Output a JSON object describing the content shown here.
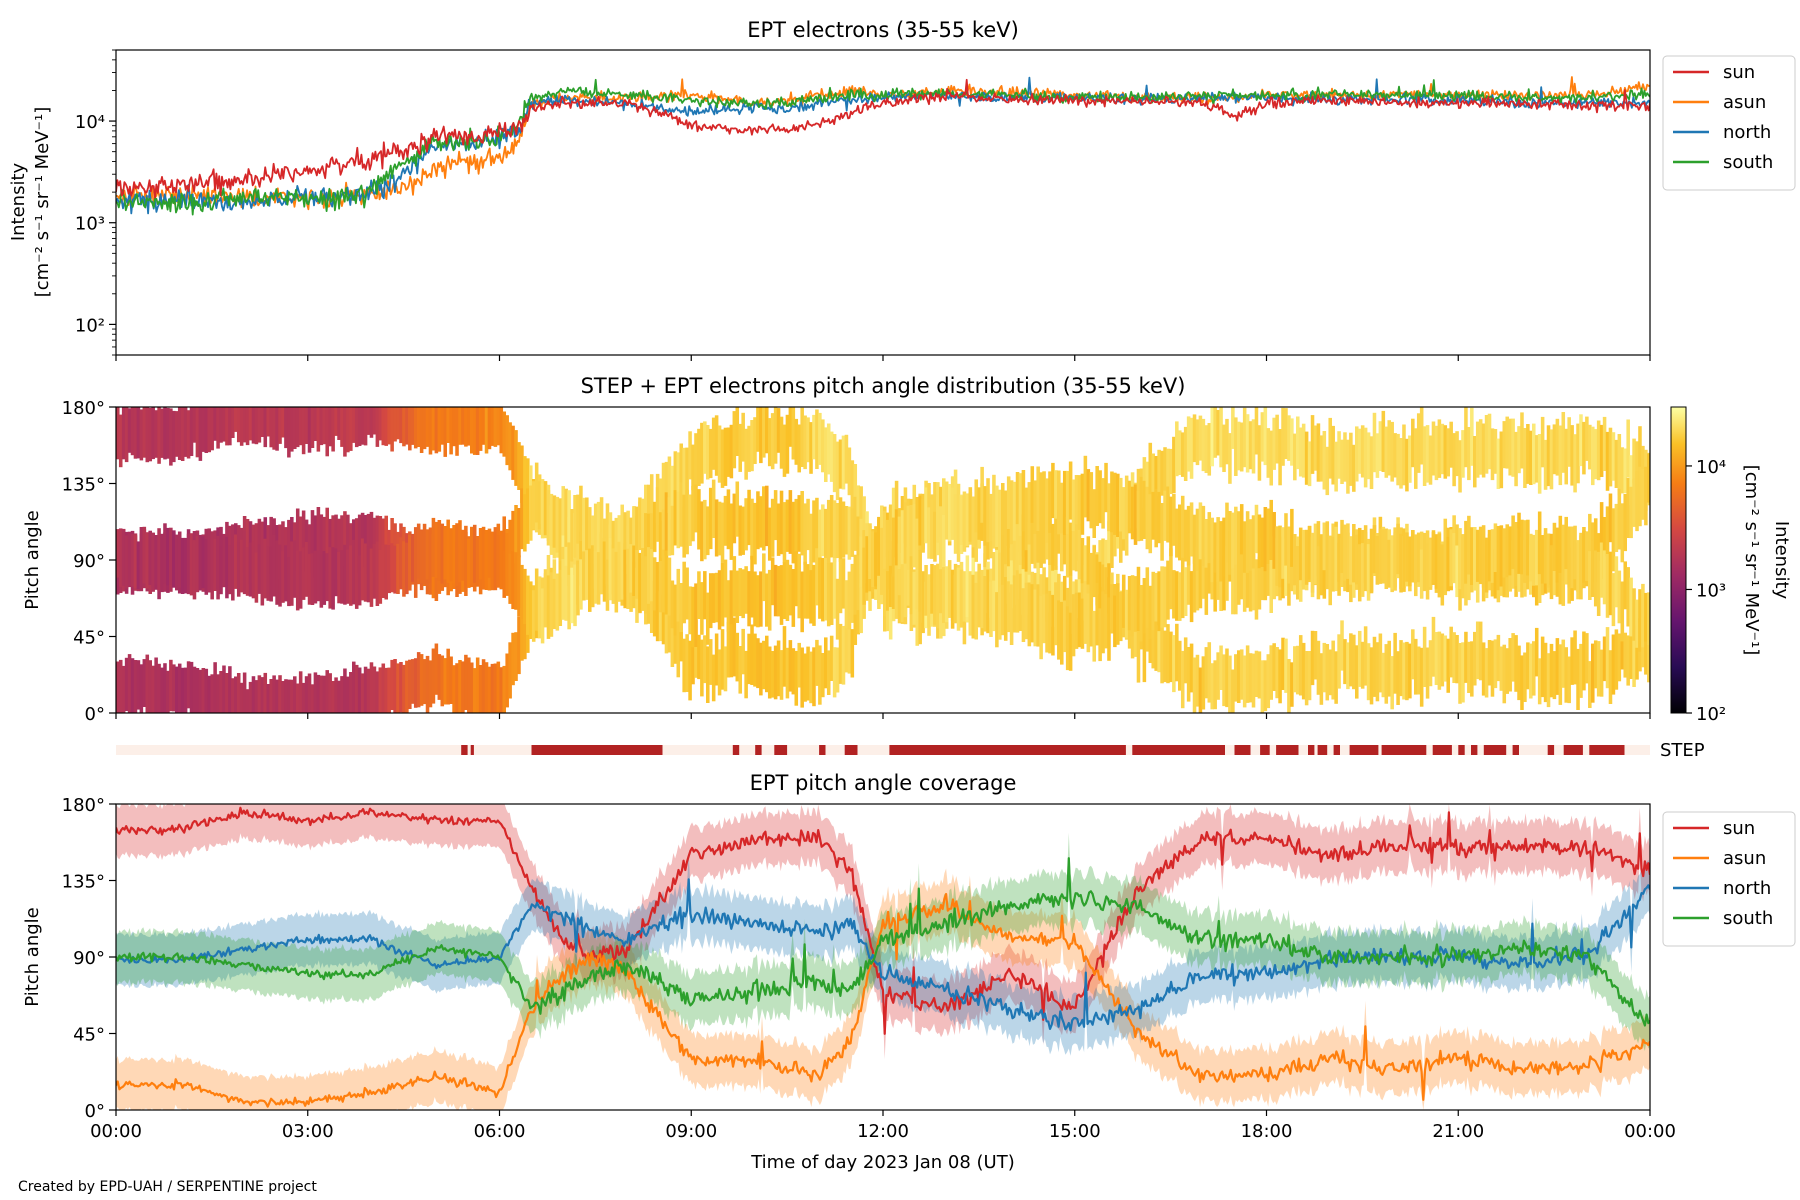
{
  "figure": {
    "credit": "Created by EPD-UAH / SERPENTINE project",
    "xlabel": "Time of day 2023 Jan 08 (UT)",
    "x_ticks": [
      "00:00",
      "03:00",
      "06:00",
      "09:00",
      "12:00",
      "15:00",
      "18:00",
      "21:00",
      "00:00"
    ]
  },
  "chart_data": [
    {
      "panel": "intensity",
      "type": "line",
      "title": "EPT electrons (35-55 keV)",
      "ylabel_line1": "Intensity",
      "ylabel_line2": "[cm⁻² s⁻¹ sr⁻¹ MeV⁻¹]",
      "yscale": "log",
      "ylim": [
        50,
        50000
      ],
      "y_ticks": [
        "10²",
        "10³",
        "10⁴"
      ],
      "x_range_hours": [
        0,
        24
      ],
      "legend_position": "outside-right",
      "x_hours": [
        0,
        1,
        2,
        3,
        4,
        4.5,
        5,
        6,
        6.3,
        6.5,
        7,
        8,
        9,
        10,
        10.5,
        11,
        11.5,
        12,
        13,
        14,
        15,
        16,
        17,
        17.5,
        18,
        19,
        20,
        21,
        22,
        23,
        24
      ],
      "series": [
        {
          "name": "sun",
          "color": "#d62728",
          "values": [
            2200,
            2400,
            2600,
            3200,
            4200,
            5500,
            6800,
            7500,
            9000,
            13000,
            15000,
            15000,
            9000,
            8000,
            8500,
            9500,
            12000,
            15000,
            18000,
            16000,
            16000,
            16000,
            15000,
            11000,
            15000,
            16000,
            15000,
            15000,
            15000,
            14000,
            14000
          ]
        },
        {
          "name": "asun",
          "color": "#ff7f0e",
          "values": [
            1800,
            1900,
            1800,
            1700,
            1900,
            2200,
            3500,
            4500,
            6000,
            15000,
            17000,
            17000,
            18000,
            15000,
            16000,
            18000,
            20000,
            18000,
            20000,
            19000,
            18000,
            17000,
            17000,
            17000,
            18000,
            18000,
            18000,
            18000,
            18000,
            18000,
            22000
          ]
        },
        {
          "name": "north",
          "color": "#1f77b4",
          "values": [
            1600,
            1700,
            1600,
            1800,
            2000,
            3000,
            5500,
            7000,
            8000,
            15000,
            16000,
            15000,
            12000,
            14000,
            13000,
            15000,
            16000,
            17000,
            18000,
            17000,
            17000,
            16000,
            17000,
            17000,
            17000,
            16000,
            16000,
            16000,
            15000,
            15000,
            15000
          ]
        },
        {
          "name": "south",
          "color": "#2ca02c",
          "values": [
            1700,
            1500,
            1800,
            1700,
            1900,
            4000,
            6000,
            7000,
            9000,
            17000,
            20000,
            18000,
            16000,
            15000,
            15000,
            17000,
            18000,
            18000,
            19000,
            18000,
            17000,
            17000,
            18000,
            18000,
            18000,
            18000,
            18000,
            18000,
            17000,
            17000,
            18000
          ]
        }
      ]
    },
    {
      "panel": "pitch-angle-distribution",
      "type": "heatmap",
      "title": "STEP + EPT electrons pitch angle distribution (35-55 keV)",
      "ylabel": "Pitch angle",
      "y_ticks": [
        "0°",
        "45°",
        "90°",
        "135°",
        "180°"
      ],
      "ylim": [
        0,
        180
      ],
      "x_range_hours": [
        0,
        24
      ],
      "colorbar": {
        "label": "Intensity",
        "units": "[cm⁻² s⁻¹ sr⁻¹ MeV⁻¹]",
        "scale": "log",
        "range": [
          100,
          30000
        ],
        "ticks": [
          "10²",
          "10³",
          "10⁴"
        ],
        "colormap": "inferno"
      }
    },
    {
      "panel": "step-coverage",
      "type": "bar",
      "label": "STEP",
      "present_color": "#b22222",
      "absent_color": "#fcefe8",
      "present_intervals_hours": [
        [
          5.4,
          5.5
        ],
        [
          5.55,
          5.6
        ],
        [
          6.5,
          8.55
        ],
        [
          9.65,
          9.75
        ],
        [
          10.0,
          10.1
        ],
        [
          10.3,
          10.5
        ],
        [
          11.0,
          11.1
        ],
        [
          11.4,
          11.6
        ],
        [
          12.1,
          15.8
        ],
        [
          15.9,
          17.35
        ],
        [
          17.5,
          17.75
        ],
        [
          17.9,
          18.05
        ],
        [
          18.15,
          18.5
        ],
        [
          18.65,
          18.75
        ],
        [
          18.8,
          18.95
        ],
        [
          19.05,
          19.15
        ],
        [
          19.3,
          19.75
        ],
        [
          19.8,
          20.5
        ],
        [
          20.6,
          20.9
        ],
        [
          21.0,
          21.1
        ],
        [
          21.2,
          21.3
        ],
        [
          21.4,
          21.75
        ],
        [
          21.85,
          21.95
        ],
        [
          22.4,
          22.5
        ],
        [
          22.65,
          22.95
        ],
        [
          23.05,
          23.6
        ]
      ]
    },
    {
      "panel": "pitch-angle-coverage",
      "type": "line",
      "title": "EPT pitch angle coverage",
      "ylabel": "Pitch angle",
      "y_ticks": [
        "0°",
        "45°",
        "90°",
        "135°",
        "180°"
      ],
      "ylim": [
        0,
        180
      ],
      "x_range_hours": [
        0,
        24
      ],
      "legend_position": "outside-right",
      "x_hours": [
        0,
        1,
        2,
        3,
        4,
        5,
        6,
        6.5,
        7,
        7.5,
        8,
        9,
        10,
        11,
        11.5,
        12,
        13,
        14,
        15,
        16,
        17,
        18,
        19,
        20,
        21,
        22,
        23,
        24
      ],
      "series": [
        {
          "name": "sun",
          "color": "#d62728",
          "values": [
            165,
            165,
            175,
            170,
            175,
            170,
            170,
            130,
            100,
            90,
            95,
            150,
            160,
            160,
            140,
            70,
            60,
            80,
            60,
            130,
            160,
            160,
            150,
            155,
            155,
            155,
            155,
            140
          ]
        },
        {
          "name": "asun",
          "color": "#ff7f0e",
          "values": [
            15,
            15,
            5,
            5,
            10,
            20,
            10,
            60,
            80,
            90,
            80,
            30,
            30,
            20,
            40,
            110,
            120,
            100,
            100,
            45,
            20,
            20,
            30,
            25,
            30,
            25,
            25,
            40
          ]
        },
        {
          "name": "north",
          "color": "#1f77b4",
          "values": [
            88,
            88,
            95,
            100,
            100,
            85,
            90,
            120,
            115,
            105,
            100,
            115,
            110,
            105,
            110,
            80,
            70,
            60,
            50,
            60,
            80,
            80,
            90,
            90,
            90,
            85,
            90,
            130
          ]
        },
        {
          "name": "south",
          "color": "#2ca02c",
          "values": [
            90,
            90,
            85,
            80,
            80,
            95,
            90,
            60,
            70,
            80,
            85,
            65,
            70,
            75,
            70,
            100,
            110,
            120,
            125,
            120,
            100,
            100,
            90,
            90,
            90,
            95,
            90,
            50
          ]
        }
      ]
    }
  ]
}
